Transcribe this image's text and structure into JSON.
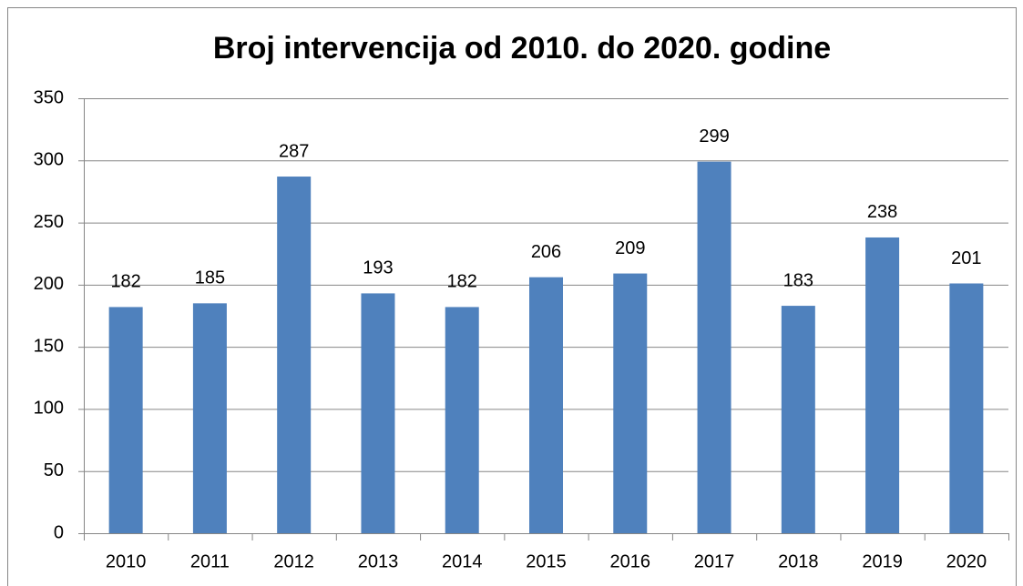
{
  "chart_data": {
    "type": "bar",
    "title": "Broj intervencija od 2010. do 2020. godine",
    "categories": [
      "2010",
      "2011",
      "2012",
      "2013",
      "2014",
      "2015",
      "2016",
      "2017",
      "2018",
      "2019",
      "2020"
    ],
    "values": [
      182,
      185,
      287,
      193,
      182,
      206,
      209,
      299,
      183,
      238,
      201
    ],
    "color": "#4f81bd",
    "ylim": [
      0,
      350
    ],
    "yticks": [
      0,
      50,
      100,
      150,
      200,
      250,
      300,
      350
    ],
    "grid": true
  }
}
